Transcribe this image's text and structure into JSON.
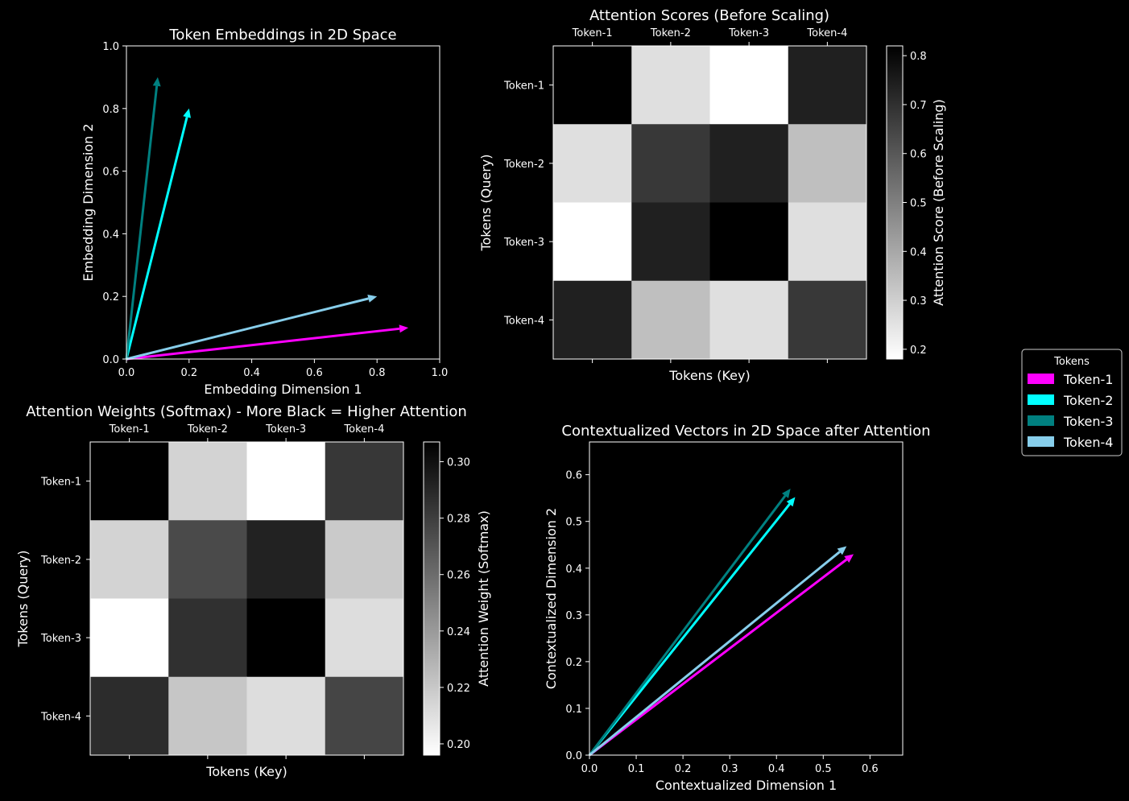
{
  "chart_data": [
    {
      "id": "embeddings",
      "type": "vector-scatter",
      "title": "Token Embeddings in 2D Space",
      "xlabel": "Embedding Dimension 1",
      "ylabel": "Embedding Dimension 2",
      "xlim": [
        0,
        1
      ],
      "ylim": [
        0,
        1
      ],
      "xticks": [
        "0.0",
        "0.2",
        "0.4",
        "0.6",
        "0.8",
        "1.0"
      ],
      "yticks": [
        "0.0",
        "0.2",
        "0.4",
        "0.6",
        "0.8",
        "1.0"
      ],
      "vectors": [
        {
          "token": "Token-1",
          "x": 0.9,
          "y": 0.1
        },
        {
          "token": "Token-2",
          "x": 0.2,
          "y": 0.8
        },
        {
          "token": "Token-3",
          "x": 0.1,
          "y": 0.9
        },
        {
          "token": "Token-4",
          "x": 0.8,
          "y": 0.2
        }
      ]
    },
    {
      "id": "scores",
      "type": "heatmap",
      "title": "Attention Scores (Before Scaling)",
      "xlabel": "Tokens (Key)",
      "ylabel": "Tokens (Query)",
      "colorbar_label": "Attention Score (Before Scaling)",
      "categories": [
        "Token-1",
        "Token-2",
        "Token-3",
        "Token-4"
      ],
      "values": [
        [
          0.82,
          0.26,
          0.18,
          0.74
        ],
        [
          0.26,
          0.68,
          0.74,
          0.34
        ],
        [
          0.18,
          0.74,
          0.82,
          0.26
        ],
        [
          0.74,
          0.34,
          0.26,
          0.68
        ]
      ],
      "vmin": 0.18,
      "vmax": 0.82,
      "colorbar_ticks": [
        "0.2",
        "0.3",
        "0.4",
        "0.5",
        "0.6",
        "0.7",
        "0.8"
      ],
      "colorbar_tick_values": [
        0.2,
        0.3,
        0.4,
        0.5,
        0.6,
        0.7,
        0.8
      ]
    },
    {
      "id": "weights",
      "type": "heatmap",
      "title": "Attention Weights (Softmax) - More Black = Higher Attention",
      "xlabel": "Tokens (Key)",
      "ylabel": "Tokens (Query)",
      "colorbar_label": "Attention Weight (Softmax)",
      "categories": [
        "Token-1",
        "Token-2",
        "Token-3",
        "Token-4"
      ],
      "values": [
        [
          0.307,
          0.215,
          0.196,
          0.283
        ],
        [
          0.215,
          0.275,
          0.292,
          0.219
        ],
        [
          0.196,
          0.286,
          0.307,
          0.211
        ],
        [
          0.288,
          0.221,
          0.211,
          0.277
        ]
      ],
      "vmin": 0.196,
      "vmax": 0.307,
      "colorbar_ticks": [
        "0.20",
        "0.22",
        "0.24",
        "0.26",
        "0.28",
        "0.30"
      ],
      "colorbar_tick_values": [
        0.2,
        0.22,
        0.24,
        0.26,
        0.28,
        0.3
      ]
    },
    {
      "id": "contextual",
      "type": "vector-scatter",
      "title": "Contextualized Vectors in 2D Space after Attention",
      "xlabel": "Contextualized Dimension 1",
      "ylabel": "Contextualized Dimension 2",
      "xlim": [
        0,
        0.67
      ],
      "ylim": [
        0,
        0.67
      ],
      "xticks": [
        "0.0",
        "0.1",
        "0.2",
        "0.3",
        "0.4",
        "0.5",
        "0.6"
      ],
      "yticks": [
        "0.0",
        "0.1",
        "0.2",
        "0.3",
        "0.4",
        "0.5",
        "0.6"
      ],
      "vectors": [
        {
          "token": "Token-1",
          "x": 0.565,
          "y": 0.43
        },
        {
          "token": "Token-2",
          "x": 0.44,
          "y": 0.552
        },
        {
          "token": "Token-3",
          "x": 0.43,
          "y": 0.57
        },
        {
          "token": "Token-4",
          "x": 0.55,
          "y": 0.447
        }
      ]
    }
  ],
  "legend": {
    "title": "Tokens",
    "placement": "right",
    "entries": [
      {
        "label": "Token-1",
        "color": "#ff00ff"
      },
      {
        "label": "Token-2",
        "color": "#00ffff"
      },
      {
        "label": "Token-3",
        "color": "#008080"
      },
      {
        "label": "Token-4",
        "color": "#87ceeb"
      }
    ]
  }
}
